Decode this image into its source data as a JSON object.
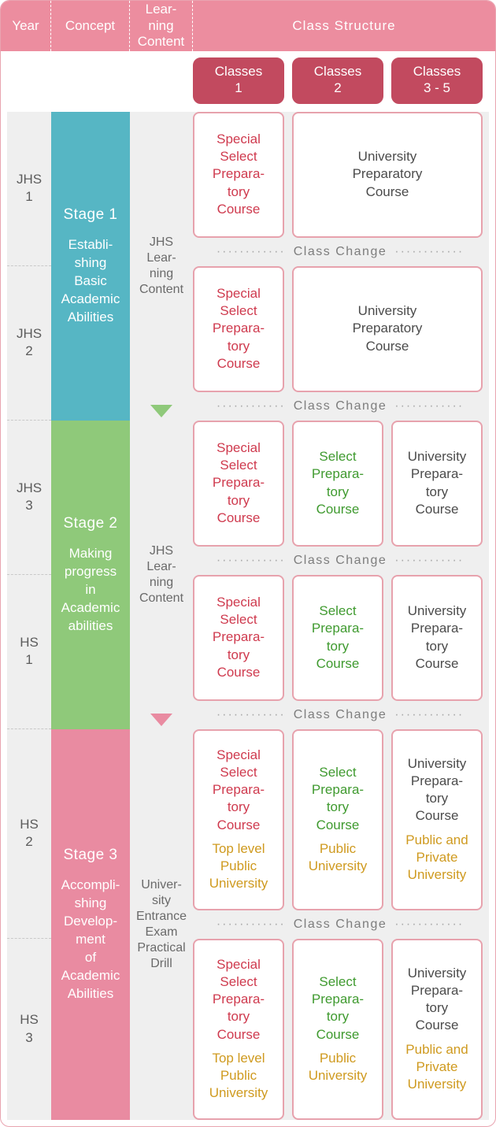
{
  "colors": {
    "headerBg": "#ec8d9f",
    "chipBg": "#c24a5f",
    "stage1": "#56b6c4",
    "stage2": "#8fc97a",
    "stage3": "#e98ba1",
    "cardBorder": "#e7a2ad",
    "grayBg": "#efefef",
    "tri1": "#8fc97a",
    "tri2": "#e98ba1",
    "textRed": "#cf3a4e",
    "textGreen": "#3f9a2f",
    "textDark": "#4b4b4b",
    "textGold": "#cf9a1f",
    "textMuted": "#7d7d7d"
  },
  "layout": {
    "yearColWidth": 56,
    "conceptColWidth": 100,
    "contentColWidth": 80,
    "cardSmallWidth": 116,
    "cardBigWidth": 242,
    "cardGap": 10,
    "rowHeights": {
      "jhs1": 160,
      "jhs2": 160,
      "jhs3": 160,
      "hs1": 160,
      "hs2": 230,
      "hs3": 230
    },
    "dividerHeight": 36
  },
  "header": {
    "year": "Year",
    "concept": "Concept",
    "content": "Lear-\nning\nContent",
    "class": "Class Structure"
  },
  "chips": [
    {
      "label": "Classes\n1"
    },
    {
      "label": "Classes\n2"
    },
    {
      "label": "Classes\n3 - 5"
    }
  ],
  "years": [
    {
      "id": "jhs1",
      "label": "JHS\n1"
    },
    {
      "id": "jhs2",
      "label": "JHS\n2"
    },
    {
      "id": "jhs3",
      "label": "JHS\n3"
    },
    {
      "id": "hs1",
      "label": "HS\n1"
    },
    {
      "id": "hs2",
      "label": "HS\n2"
    },
    {
      "id": "hs3",
      "label": "HS\n3"
    }
  ],
  "stages": [
    {
      "title": "Stage 1",
      "desc": "Establi-\nshing\nBasic\nAcademic\nAbilities",
      "spanRows": [
        "jhs1",
        "jhs2"
      ],
      "colorKey": "stage1"
    },
    {
      "title": "Stage 2",
      "desc": "Making\nprogress\nin\nAcademic\nabilities",
      "spanRows": [
        "jhs3",
        "hs1"
      ],
      "colorKey": "stage2"
    },
    {
      "title": "Stage 3",
      "desc": "Accompli-\nshing\nDevelop-\nment\nof\nAcademic\nAbilities",
      "spanRows": [
        "hs2",
        "hs3"
      ],
      "colorKey": "stage3"
    }
  ],
  "contentBlocks": [
    {
      "label": "JHS\nLear-\nning\nContent",
      "centerAt": "jhs2",
      "triAfterColorKey": "tri1"
    },
    {
      "label": "JHS\nLear-\nning\nContent",
      "centerAt": "hs1",
      "triAfterColorKey": "tri2"
    },
    {
      "label": "Univer-\nsity\nEntrance\nExam\nPractical\nDrill",
      "centerAt": "hs3",
      "triAfterColorKey": null
    }
  ],
  "divider": {
    "label": "Class Change",
    "dots": "············"
  },
  "classRows": {
    "jhs1": [
      {
        "w": "small",
        "lines": [
          {
            "text": "Special\nSelect\nPrepara-\ntory\nCourse",
            "color": "textRed"
          }
        ]
      },
      {
        "w": "big",
        "lines": [
          {
            "text": "University\nPreparatory\nCourse",
            "color": "textDark"
          }
        ]
      }
    ],
    "jhs2": [
      {
        "w": "small",
        "lines": [
          {
            "text": "Special\nSelect\nPrepara-\ntory\nCourse",
            "color": "textRed"
          }
        ]
      },
      {
        "w": "big",
        "lines": [
          {
            "text": "University\nPreparatory\nCourse",
            "color": "textDark"
          }
        ]
      }
    ],
    "jhs3": [
      {
        "w": "small",
        "lines": [
          {
            "text": "Special\nSelect\nPrepara-\ntory\nCourse",
            "color": "textRed"
          }
        ]
      },
      {
        "w": "small",
        "lines": [
          {
            "text": "Select\nPrepara-\ntory\nCourse",
            "color": "textGreen"
          }
        ]
      },
      {
        "w": "small",
        "lines": [
          {
            "text": "University\nPrepara-\ntory\nCourse",
            "color": "textDark"
          }
        ]
      }
    ],
    "hs1": [
      {
        "w": "small",
        "lines": [
          {
            "text": "Special\nSelect\nPrepara-\ntory\nCourse",
            "color": "textRed"
          }
        ]
      },
      {
        "w": "small",
        "lines": [
          {
            "text": "Select\nPrepara-\ntory\nCourse",
            "color": "textGreen"
          }
        ]
      },
      {
        "w": "small",
        "lines": [
          {
            "text": "University\nPrepara-\ntory\nCourse",
            "color": "textDark"
          }
        ]
      }
    ],
    "hs2": [
      {
        "w": "small",
        "lines": [
          {
            "text": "Special\nSelect\nPrepara-\ntory\nCourse",
            "color": "textRed"
          },
          {
            "text": "Top level\nPublic\nUniversity",
            "color": "textGold"
          }
        ]
      },
      {
        "w": "small",
        "lines": [
          {
            "text": "Select\nPrepara-\ntory\nCourse",
            "color": "textGreen"
          },
          {
            "text": "Public\nUniversity",
            "color": "textGold"
          }
        ]
      },
      {
        "w": "small",
        "lines": [
          {
            "text": "University\nPrepara-\ntory\nCourse",
            "color": "textDark"
          },
          {
            "text": "Public and\nPrivate\nUniversity",
            "color": "textGold"
          }
        ]
      }
    ],
    "hs3": [
      {
        "w": "small",
        "lines": [
          {
            "text": "Special\nSelect\nPrepara-\ntory\nCourse",
            "color": "textRed"
          },
          {
            "text": "Top level\nPublic\nUniversity",
            "color": "textGold"
          }
        ]
      },
      {
        "w": "small",
        "lines": [
          {
            "text": "Select\nPrepara-\ntory\nCourse",
            "color": "textGreen"
          },
          {
            "text": "Public\nUniversity",
            "color": "textGold"
          }
        ]
      },
      {
        "w": "small",
        "lines": [
          {
            "text": "University\nPrepara-\ntory\nCourse",
            "color": "textDark"
          },
          {
            "text": "Public and\nPrivate\nUniversity",
            "color": "textGold"
          }
        ]
      }
    ]
  }
}
